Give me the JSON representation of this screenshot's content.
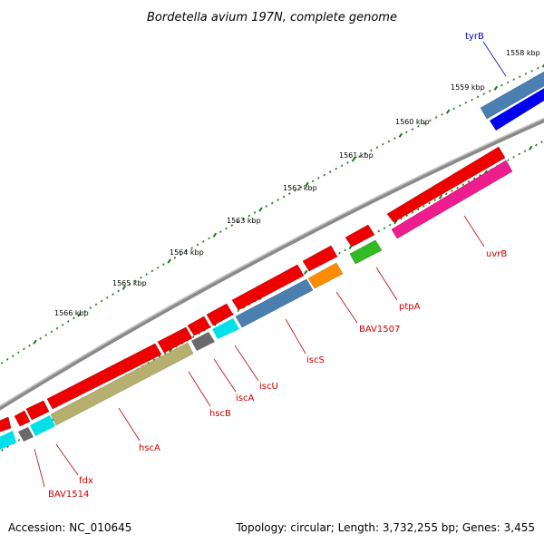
{
  "title": "Bordetella avium 197N, complete genome",
  "footer": {
    "accession": "Accession: NC_010645",
    "topology": "Topology: circular; Length: 3,732,255 bp; Genes: 3,455"
  },
  "kbp_labels": [
    "1558 kbp",
    "1559 kbp",
    "1560 kbp",
    "1561 kbp",
    "1562 kbp",
    "1563 kbp",
    "1564 kbp",
    "1565 kbp",
    "1566 kbp"
  ],
  "gene_labels": [
    {
      "text": "tyrB",
      "color": "#0000cc"
    },
    {
      "text": "uvrB",
      "color": "#cc0000"
    },
    {
      "text": "ptpA",
      "color": "#cc0000"
    },
    {
      "text": "BAV1507",
      "color": "#cc0000"
    },
    {
      "text": "iscS",
      "color": "#cc0000"
    },
    {
      "text": "iscU",
      "color": "#cc0000"
    },
    {
      "text": "iscA",
      "color": "#cc0000"
    },
    {
      "text": "hscB",
      "color": "#cc0000"
    },
    {
      "text": "hscA",
      "color": "#cc0000"
    },
    {
      "text": "fdx",
      "color": "#cc0000"
    },
    {
      "text": "BAV1514",
      "color": "#cc0000"
    }
  ],
  "colors": {
    "backbone": "#8a8a8a",
    "tick": "#1a7a1a",
    "cds_red": "#ee0000",
    "steelblue": "#4a7fb0",
    "blue": "#0000ee",
    "pink": "#ee1c8c",
    "green": "#33bb22",
    "orange": "#ff8c00",
    "cyan": "#00e0e8",
    "gray": "#6a6a6a",
    "olive": "#b5b070",
    "label_red": "#cc0000",
    "label_blue": "#0000cc"
  }
}
